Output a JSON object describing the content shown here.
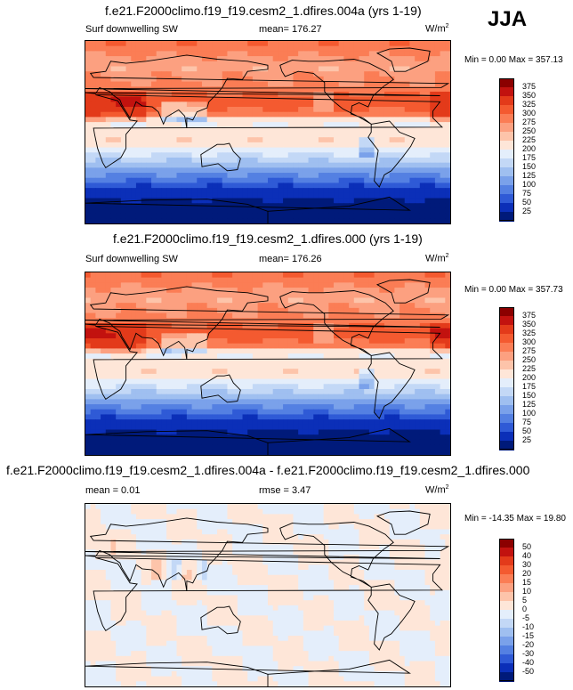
{
  "season": "JJA",
  "panels": [
    {
      "title": "f.e21.F2000climo.f19_f19.cesm2_1.dfires.004a (yrs 1-19)",
      "left_label": "Surf downwelling SW",
      "mid_label": "mean= 176.27",
      "units": "W/m",
      "units_sup": "2",
      "min_max": "Min =   0.00 Max = 357.13"
    },
    {
      "title": "f.e21.F2000climo.f19_f19.cesm2_1.dfires.000 (yrs 1-19)",
      "left_label": "Surf downwelling SW",
      "mid_label": "mean= 176.26",
      "units": "W/m",
      "units_sup": "2",
      "min_max": "Min =   0.00 Max = 357.73"
    },
    {
      "title": "f.e21.F2000climo.f19_f19.cesm2_1.dfires.004a - f.e21.F2000climo.f19_f19.cesm2_1.dfires.000",
      "left_label": "mean =   0.01",
      "mid_label": "rmse =   3.47",
      "units": "W/m",
      "units_sup": "2",
      "min_max": "Min = -14.35 Max =  19.80"
    }
  ],
  "chart_data": [
    {
      "type": "heatmap",
      "title": "f.e21.F2000climo.f19_f19.cesm2_1.dfires.004a (yrs 1-19)",
      "variable": "Surf downwelling SW",
      "mean": 176.27,
      "min": 0.0,
      "max": 357.13,
      "colorbar": {
        "levels": [
          "375",
          "350",
          "325",
          "300",
          "275",
          "250",
          "225",
          "200",
          "175",
          "150",
          "125",
          "100",
          "75",
          "50",
          "25"
        ],
        "colors": [
          "#8b0000",
          "#c2120f",
          "#e33a1a",
          "#f45a30",
          "#fb7d55",
          "#fca080",
          "#fdc4aa",
          "#fee6d8",
          "#e4eefb",
          "#c3d8f6",
          "#9fbff0",
          "#7aa1ea",
          "#5480e2",
          "#2f5ad6",
          "#0b2fb8",
          "#001a7a"
        ]
      }
    },
    {
      "type": "heatmap",
      "title": "f.e21.F2000climo.f19_f19.cesm2_1.dfires.000 (yrs 1-19)",
      "variable": "Surf downwelling SW",
      "mean": 176.26,
      "min": 0.0,
      "max": 357.73,
      "colorbar": {
        "levels": [
          "375",
          "350",
          "325",
          "300",
          "275",
          "250",
          "225",
          "200",
          "175",
          "150",
          "125",
          "100",
          "75",
          "50",
          "25"
        ],
        "colors": [
          "#8b0000",
          "#c2120f",
          "#e33a1a",
          "#f45a30",
          "#fb7d55",
          "#fca080",
          "#fdc4aa",
          "#fee6d8",
          "#e4eefb",
          "#c3d8f6",
          "#9fbff0",
          "#7aa1ea",
          "#5480e2",
          "#2f5ad6",
          "#0b2fb8",
          "#001a7a"
        ]
      }
    },
    {
      "type": "heatmap",
      "title": "f.e21.F2000climo.f19_f19.cesm2_1.dfires.004a - f.e21.F2000climo.f19_f19.cesm2_1.dfires.000",
      "variable": "difference",
      "mean": 0.01,
      "rmse": 3.47,
      "min": -14.35,
      "max": 19.8,
      "colorbar": {
        "levels": [
          "50",
          "40",
          "30",
          "20",
          "15",
          "10",
          "5",
          "0",
          "-5",
          "-10",
          "-15",
          "-20",
          "-30",
          "-40",
          "-50"
        ],
        "colors": [
          "#8b0000",
          "#c2120f",
          "#e33a1a",
          "#f45a30",
          "#fb7d55",
          "#fca080",
          "#fdc4aa",
          "#fee6d8",
          "#e4eefb",
          "#c3d8f6",
          "#9fbff0",
          "#7aa1ea",
          "#5480e2",
          "#2f5ad6",
          "#0b2fb8",
          "#001a7a"
        ]
      }
    }
  ]
}
